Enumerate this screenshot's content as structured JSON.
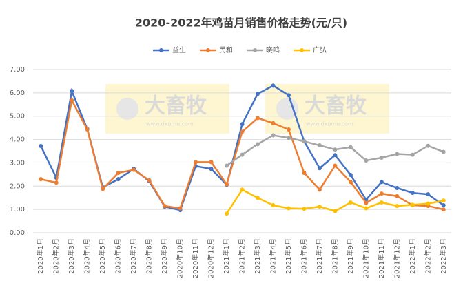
{
  "chart_data": {
    "type": "line",
    "title": "2020-2022年鸡苗月销售价格走势(元/只)",
    "watermark": {
      "text": "大畜牧",
      "url": "www.dxumu.com"
    },
    "categories": [
      "2020年1月",
      "2020年2月",
      "2020年3月",
      "2020年4月",
      "2020年5月",
      "2020年6月",
      "2020年7月",
      "2020年8月",
      "2020年9月",
      "2020年10月",
      "2020年11月",
      "2020年12月",
      "2021年1月",
      "2021年2月",
      "2021年3月",
      "2021年4月",
      "2021年5月",
      "2021年6月",
      "2021年7月",
      "2021年8月",
      "2021年9月",
      "2021年10月",
      "2021年11月",
      "2021年12月",
      "2022年1月",
      "2022年2月",
      "2022年3月"
    ],
    "series": [
      {
        "name": "益生",
        "color": "#4472c4",
        "values": [
          3.72,
          2.36,
          6.08,
          4.45,
          1.95,
          2.3,
          2.74,
          2.21,
          1.12,
          0.97,
          2.86,
          2.74,
          2.06,
          4.66,
          5.96,
          6.31,
          5.9,
          3.92,
          2.77,
          3.33,
          2.48,
          1.42,
          2.18,
          1.92,
          1.71,
          1.65,
          1.18
        ]
      },
      {
        "name": "民和",
        "color": "#ed7d31",
        "values": [
          2.3,
          2.15,
          5.68,
          4.43,
          1.88,
          2.57,
          2.7,
          2.25,
          1.15,
          1.05,
          3.03,
          3.03,
          2.08,
          4.33,
          4.92,
          4.7,
          4.43,
          2.57,
          1.85,
          2.88,
          2.18,
          1.28,
          1.68,
          1.57,
          1.18,
          1.15,
          1.0
        ]
      },
      {
        "name": "晓鸣",
        "color": "#a5a5a5",
        "values": [
          null,
          null,
          null,
          null,
          null,
          null,
          null,
          null,
          null,
          null,
          null,
          null,
          2.88,
          3.35,
          3.8,
          4.18,
          4.07,
          3.92,
          3.75,
          3.57,
          3.67,
          3.1,
          3.22,
          3.38,
          3.35,
          3.73,
          3.47
        ]
      },
      {
        "name": "广弘",
        "color": "#ffc000",
        "values": [
          null,
          null,
          null,
          null,
          null,
          null,
          null,
          null,
          null,
          null,
          null,
          null,
          0.82,
          1.85,
          1.5,
          1.18,
          1.05,
          1.03,
          1.12,
          0.93,
          1.3,
          1.05,
          1.3,
          1.15,
          1.2,
          1.25,
          1.38
        ]
      }
    ],
    "ylim": [
      0,
      7
    ],
    "yticks": [
      {
        "value": 0,
        "label": "0.00"
      },
      {
        "value": 1,
        "label": "1.00"
      },
      {
        "value": 2,
        "label": "2.00"
      },
      {
        "value": 3,
        "label": "3.00"
      },
      {
        "value": 4,
        "label": "4.00"
      },
      {
        "value": 5,
        "label": "5.00"
      },
      {
        "value": 6,
        "label": "6.00"
      },
      {
        "value": 7,
        "label": "7.00"
      }
    ],
    "grid": true,
    "legend": "top"
  }
}
